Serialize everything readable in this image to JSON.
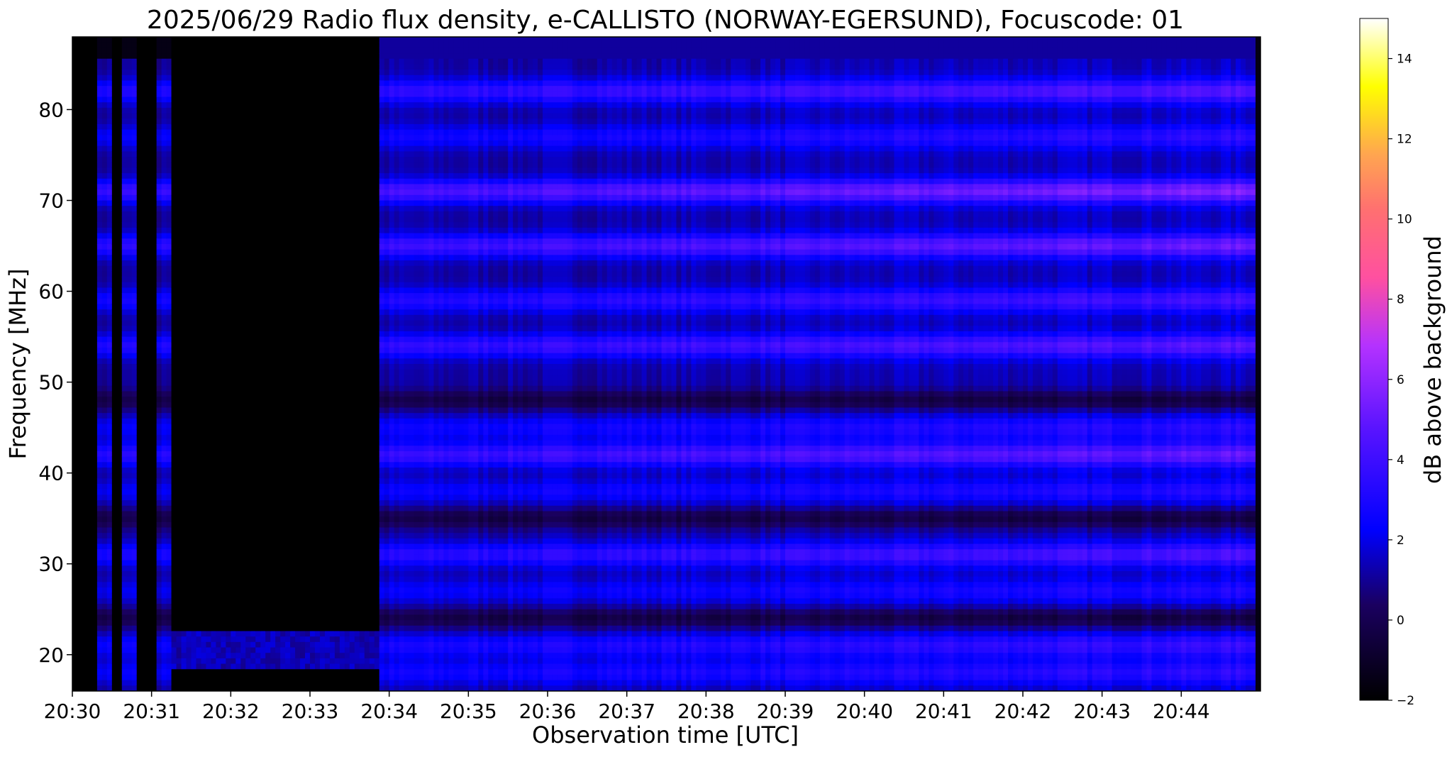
{
  "chart_data": {
    "type": "heatmap",
    "title": "2025/06/29  Radio flux density, e-CALLISTO (NORWAY-EGERSUND), Focuscode: 01",
    "xlabel": "Observation time [UTC]",
    "ylabel": "Frequency [MHz]",
    "x_ticks": [
      "20:30",
      "20:31",
      "20:32",
      "20:33",
      "20:34",
      "20:35",
      "20:36",
      "20:37",
      "20:38",
      "20:39",
      "20:40",
      "20:41",
      "20:42",
      "20:43",
      "20:44"
    ],
    "x_range_minutes": [
      0,
      15
    ],
    "y_ticks": [
      20,
      30,
      40,
      50,
      60,
      70,
      80
    ],
    "ylim": [
      16,
      88
    ],
    "colorbar": {
      "label": "dB above background",
      "ticks": [
        -2,
        0,
        2,
        4,
        6,
        8,
        10,
        12,
        14
      ],
      "range": [
        -2,
        15
      ],
      "colormap": "gnuplot2"
    },
    "features": {
      "quiet_interval_minutes": [
        1.25,
        3.9
      ],
      "early_vertical_bright_lines_minutes": [
        0.4,
        0.7,
        1.17
      ],
      "late_dark_line_minute": 14.95,
      "bright_bands_mhz": [
        {
          "freq": 82,
          "strength": 4.8
        },
        {
          "freq": 77,
          "strength": 3.0
        },
        {
          "freq": 71,
          "strength": 6.4
        },
        {
          "freq": 65,
          "strength": 5.6
        },
        {
          "freq": 59,
          "strength": 4.0
        },
        {
          "freq": 54,
          "strength": 4.9
        },
        {
          "freq": 45,
          "strength": 2.8
        },
        {
          "freq": 42,
          "strength": 5.3
        },
        {
          "freq": 38,
          "strength": 2.6
        },
        {
          "freq": 31,
          "strength": 4.4
        },
        {
          "freq": 27,
          "strength": 2.4
        },
        {
          "freq": 21,
          "strength": 3.4
        },
        {
          "freq": 18,
          "strength": 3.0
        }
      ],
      "dark_bands_mhz": [
        48,
        35,
        24
      ]
    }
  }
}
